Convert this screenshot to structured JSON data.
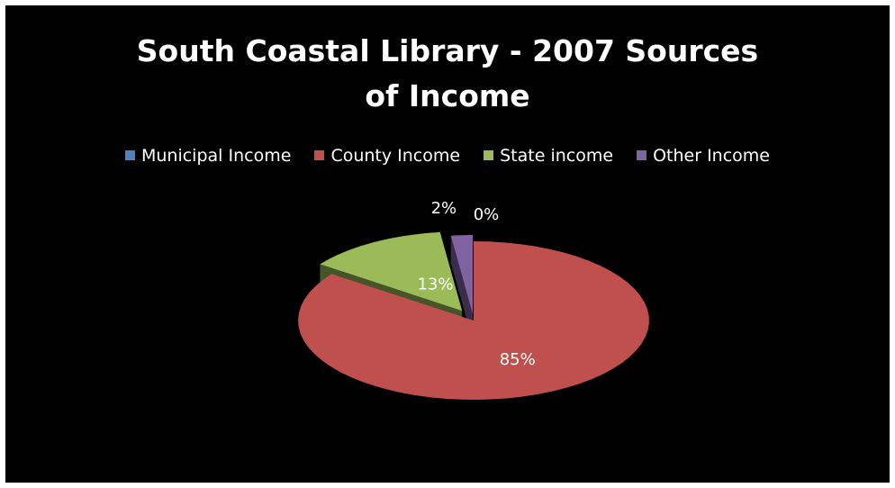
{
  "chart_data": {
    "type": "pie",
    "title": "South Coastal Library - 2007 Sources of Income",
    "title_lines": [
      "South Coastal Library - 2007 Sources",
      "of Income"
    ],
    "legend_position": "top",
    "style": "3d-exploded",
    "slices": [
      {
        "name": "Municipal Income",
        "label": "0%",
        "value": 0,
        "color": "#4F81BD"
      },
      {
        "name": "County Income",
        "label": "85%",
        "value": 85,
        "color": "#C0504D"
      },
      {
        "name": "State income",
        "label": "13%",
        "value": 13,
        "color": "#9BBB59"
      },
      {
        "name": "Other Income",
        "label": "2%",
        "value": 2,
        "color": "#8064A2"
      }
    ]
  },
  "background_color": "#000000"
}
